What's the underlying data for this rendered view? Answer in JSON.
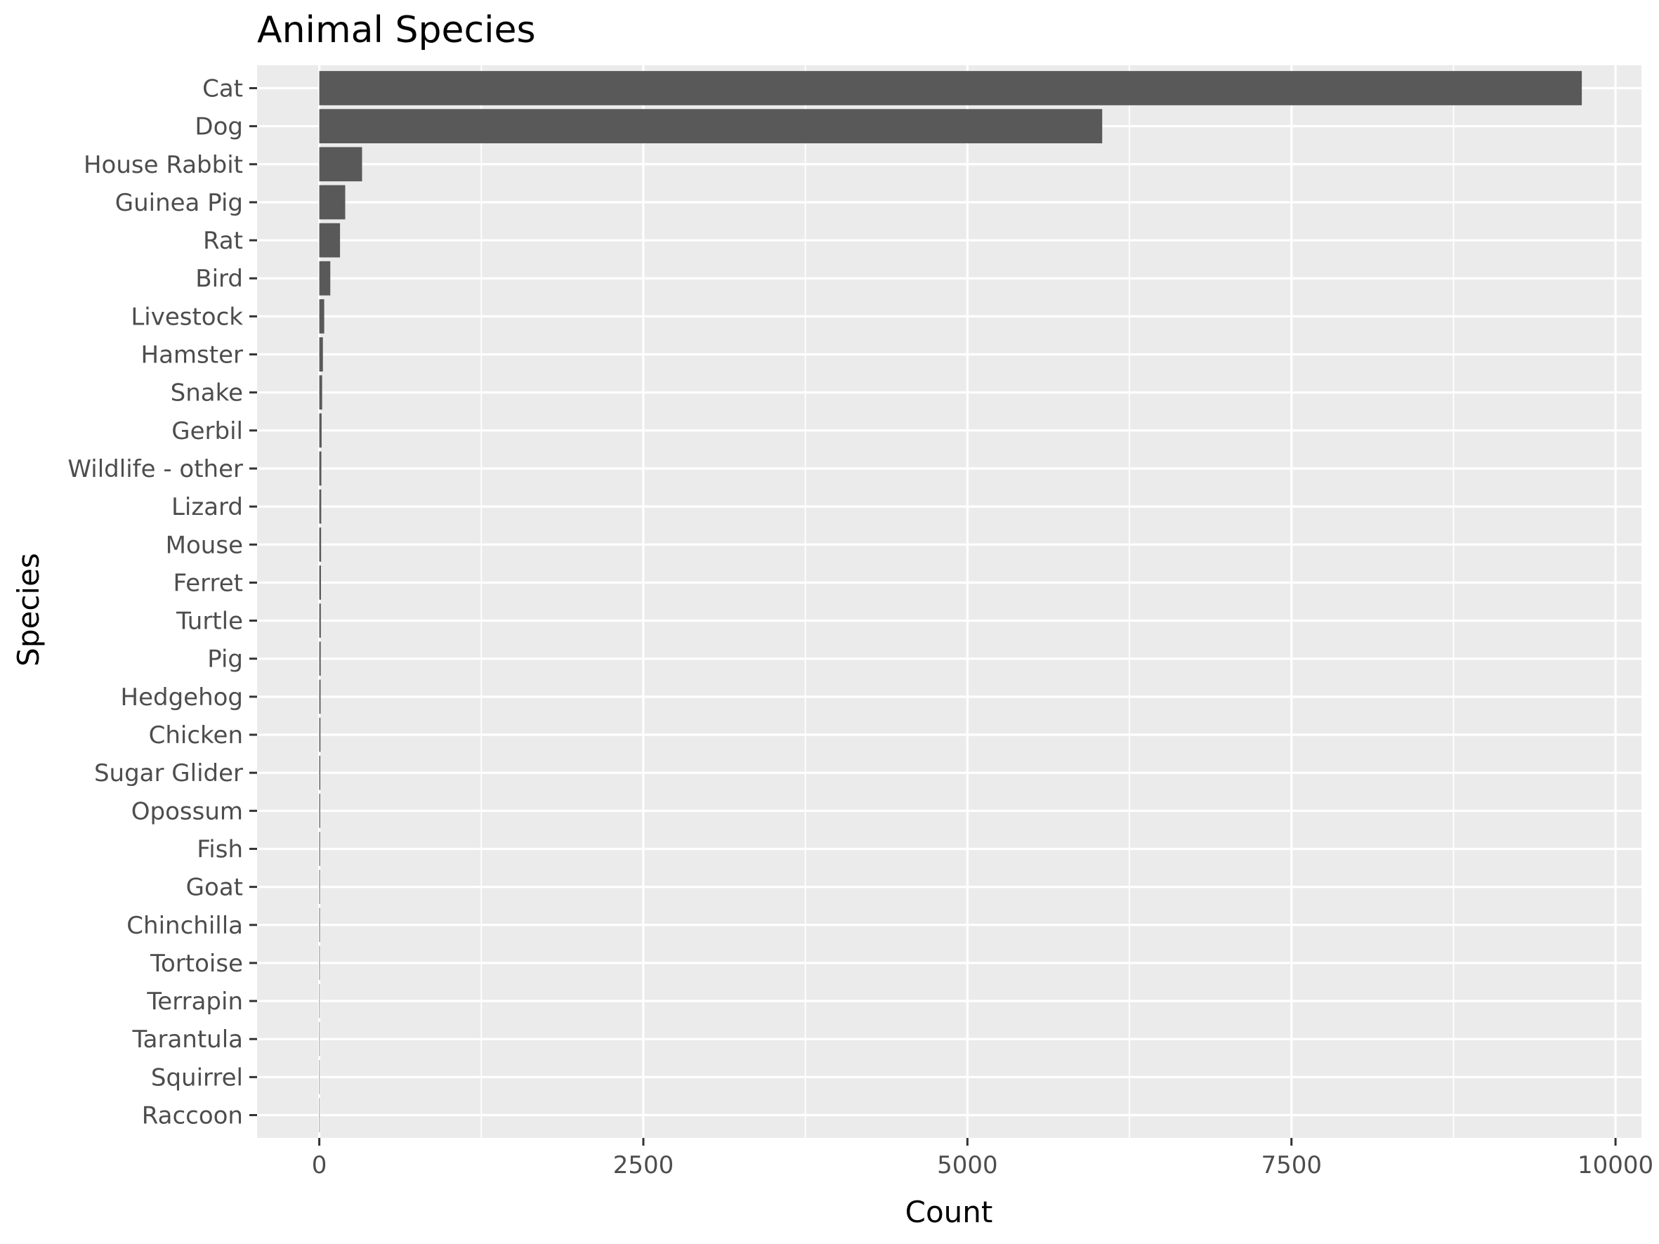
{
  "chart_data": {
    "type": "bar",
    "orientation": "horizontal",
    "title": "Animal Species",
    "xlabel": "Count",
    "ylabel": "Species",
    "xlim": [
      -480,
      10200
    ],
    "x_ticks": [
      0,
      2500,
      5000,
      7500,
      10000
    ],
    "x_tick_labels": [
      "0",
      "2500",
      "5000",
      "7500",
      "10000"
    ],
    "grid": true,
    "legend": "none",
    "categories": [
      "Cat",
      "Dog",
      "House Rabbit",
      "Guinea Pig",
      "Rat",
      "Bird",
      "Livestock",
      "Hamster",
      "Snake",
      "Gerbil",
      "Wildlife - other",
      "Lizard",
      "Mouse",
      "Ferret",
      "Turtle",
      "Pig",
      "Hedgehog",
      "Chicken",
      "Sugar Glider",
      "Opossum",
      "Fish",
      "Goat",
      "Chinchilla",
      "Tortoise",
      "Terrapin",
      "Tarantula",
      "Squirrel",
      "Raccoon"
    ],
    "values": [
      9740,
      6040,
      330,
      200,
      160,
      85,
      38,
      28,
      22,
      18,
      16,
      15,
      14,
      13,
      12,
      11,
      10,
      9,
      8,
      7,
      6,
      5,
      5,
      4,
      3,
      2,
      2,
      1
    ]
  },
  "colors": {
    "panel_background": "#ebebeb",
    "grid_major": "#ffffff",
    "bar_fill": "#595959",
    "tick_text": "#4d4d4d",
    "tick_mark": "#333333",
    "title_text": "#000000"
  }
}
